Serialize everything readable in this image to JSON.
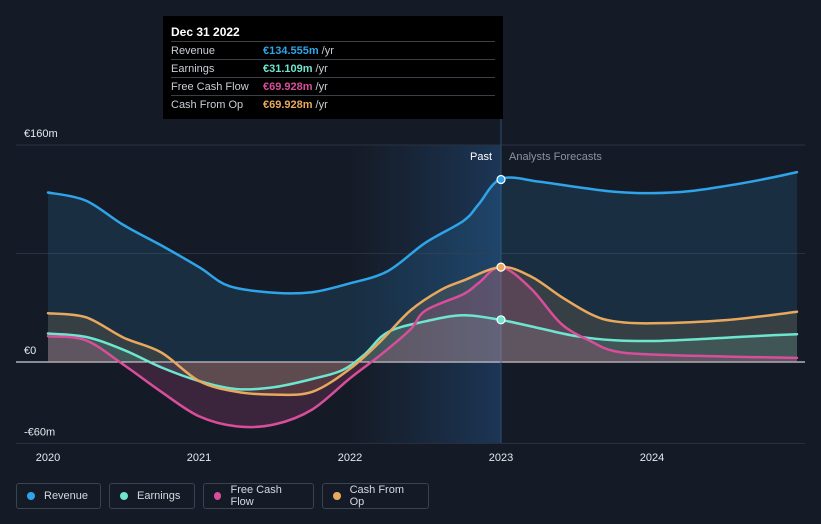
{
  "tooltip": {
    "date": "Dec 31 2022",
    "rows": [
      {
        "label": "Revenue",
        "value": "€134.555m",
        "unit": "/yr",
        "color": "#2fa4e8"
      },
      {
        "label": "Earnings",
        "value": "€31.109m",
        "unit": "/yr",
        "color": "#6ee6cf"
      },
      {
        "label": "Free Cash Flow",
        "value": "€69.928m",
        "unit": "/yr",
        "color": "#d84e9a"
      },
      {
        "label": "Cash From Op",
        "value": "€69.928m",
        "unit": "/yr",
        "color": "#e8a95e"
      }
    ]
  },
  "labels": {
    "past": "Past",
    "forecast": "Analysts Forecasts"
  },
  "legend": [
    {
      "label": "Revenue",
      "color": "#2fa4e8"
    },
    {
      "label": "Earnings",
      "color": "#6ee6cf"
    },
    {
      "label": "Free Cash Flow",
      "color": "#d84e9a"
    },
    {
      "label": "Cash From Op",
      "color": "#e8a95e"
    }
  ],
  "chart_data": {
    "type": "line",
    "ylim": [
      -60,
      160
    ],
    "xlim": [
      2019.9,
      2024.96
    ],
    "y_ticks": [
      {
        "value": 160,
        "label": "€160m"
      },
      {
        "value": 0,
        "label": "€0"
      },
      {
        "value": -60,
        "label": "-€60m"
      }
    ],
    "x_ticks": [
      {
        "value": 2020,
        "label": "2020"
      },
      {
        "value": 2021,
        "label": "2021"
      },
      {
        "value": 2022,
        "label": "2022"
      },
      {
        "value": 2023,
        "label": "2023"
      },
      {
        "value": 2024,
        "label": "2024"
      }
    ],
    "past_shade_start": 2022,
    "split_x": 2023,
    "series": [
      {
        "name": "Revenue",
        "color": "#2fa4e8",
        "points": [
          [
            2020,
            125
          ],
          [
            2020.25,
            119
          ],
          [
            2020.5,
            101
          ],
          [
            2020.75,
            86
          ],
          [
            2021,
            70
          ],
          [
            2021.2,
            56
          ],
          [
            2021.5,
            51
          ],
          [
            2021.75,
            51.5
          ],
          [
            2022,
            58
          ],
          [
            2022.25,
            67
          ],
          [
            2022.5,
            88
          ],
          [
            2022.75,
            104
          ],
          [
            2022.85,
            116
          ],
          [
            2023,
            135
          ],
          [
            2023.25,
            133
          ],
          [
            2023.5,
            129
          ],
          [
            2023.75,
            125.5
          ],
          [
            2024,
            124.5
          ],
          [
            2024.25,
            126
          ],
          [
            2024.5,
            130
          ],
          [
            2024.75,
            135
          ],
          [
            2024.96,
            140
          ]
        ]
      },
      {
        "name": "Earnings",
        "color": "#6ee6cf",
        "points": [
          [
            2020,
            21
          ],
          [
            2020.25,
            18.5
          ],
          [
            2020.5,
            9
          ],
          [
            2020.75,
            -4
          ],
          [
            2021,
            -14
          ],
          [
            2021.25,
            -20
          ],
          [
            2021.5,
            -18.5
          ],
          [
            2021.75,
            -12.5
          ],
          [
            2021.95,
            -6
          ],
          [
            2022.1,
            6
          ],
          [
            2022.25,
            22
          ],
          [
            2022.5,
            30
          ],
          [
            2022.75,
            34.5
          ],
          [
            2023,
            31
          ],
          [
            2023.25,
            25
          ],
          [
            2023.5,
            19
          ],
          [
            2023.75,
            16
          ],
          [
            2024,
            15.5
          ],
          [
            2024.25,
            16.5
          ],
          [
            2024.5,
            18
          ],
          [
            2024.75,
            19.5
          ],
          [
            2024.96,
            20.5
          ]
        ]
      },
      {
        "name": "Free Cash Flow",
        "color": "#d84e9a",
        "points": [
          [
            2020,
            19
          ],
          [
            2020.25,
            16
          ],
          [
            2020.5,
            -2
          ],
          [
            2020.75,
            -22
          ],
          [
            2021,
            -40
          ],
          [
            2021.25,
            -47.5
          ],
          [
            2021.5,
            -46
          ],
          [
            2021.75,
            -35
          ],
          [
            2022,
            -12
          ],
          [
            2022.2,
            5
          ],
          [
            2022.4,
            24
          ],
          [
            2022.5,
            38
          ],
          [
            2022.75,
            50
          ],
          [
            2022.85,
            58
          ],
          [
            2023,
            70
          ],
          [
            2023.2,
            54
          ],
          [
            2023.4,
            28
          ],
          [
            2023.6,
            15
          ],
          [
            2023.75,
            8
          ],
          [
            2024,
            5.5
          ],
          [
            2024.5,
            4
          ],
          [
            2024.96,
            3
          ]
        ]
      },
      {
        "name": "Cash From Op",
        "color": "#e8a95e",
        "points": [
          [
            2020,
            36
          ],
          [
            2020.25,
            33
          ],
          [
            2020.5,
            18
          ],
          [
            2020.75,
            7
          ],
          [
            2021,
            -14
          ],
          [
            2021.25,
            -22
          ],
          [
            2021.5,
            -24
          ],
          [
            2021.75,
            -22
          ],
          [
            2022,
            -5
          ],
          [
            2022.2,
            15
          ],
          [
            2022.4,
            38
          ],
          [
            2022.6,
            53
          ],
          [
            2022.75,
            60
          ],
          [
            2023,
            70
          ],
          [
            2023.2,
            63
          ],
          [
            2023.4,
            48
          ],
          [
            2023.6,
            35
          ],
          [
            2023.75,
            30
          ],
          [
            2024,
            28.5
          ],
          [
            2024.5,
            31
          ],
          [
            2024.96,
            37
          ]
        ]
      }
    ],
    "markers": [
      {
        "series": "Revenue",
        "x": 2023,
        "y": 134.555
      },
      {
        "series": "Cash From Op",
        "x": 2023,
        "y": 69.928
      },
      {
        "series": "Earnings",
        "x": 2023,
        "y": 31.109
      }
    ]
  }
}
